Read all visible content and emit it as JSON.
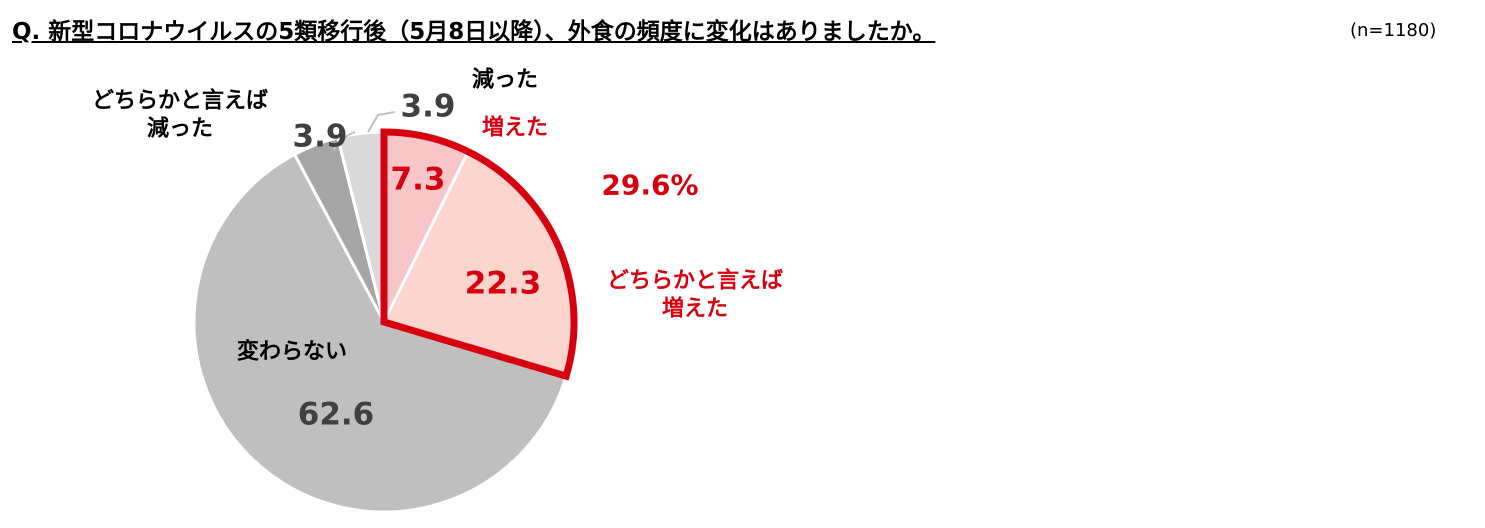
{
  "chart_data": {
    "type": "pie",
    "title": "Q. 新型コロナウイルスの5類移行後（5月8日以降）、外食の頻度に変化はありましたか。",
    "subtitle": "(n=1180)",
    "categories": [
      "増えた",
      "どちらかと言えば\n増えた",
      "変わらない",
      "どちらかと言えば\n減った",
      "減った"
    ],
    "values": [
      7.3,
      22.3,
      62.6,
      3.9,
      3.9
    ],
    "colors": [
      "#f8c5c8",
      "#fcd5cf",
      "#bfbfbf",
      "#a6a6a6",
      "#d9d9d9"
    ],
    "highlight_total": "29.6%",
    "highlight_color": "#d7000f"
  }
}
